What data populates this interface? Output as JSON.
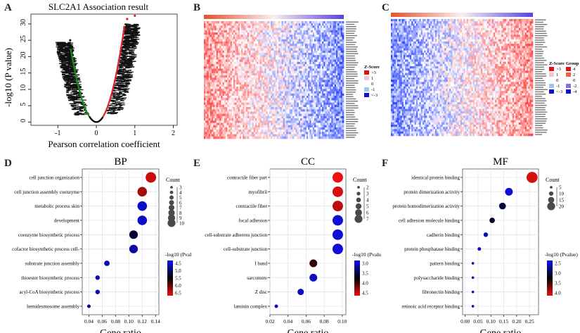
{
  "panel_letters": {
    "a": "A",
    "b": "B",
    "c": "C",
    "d": "D",
    "e": "E",
    "f": "F"
  },
  "chart_data": [
    {
      "id": "A",
      "type": "scatter",
      "title": "SLC2A1 Association result",
      "xlabel": "Pearson correlation coefficient",
      "ylabel": "-log10 (P value)",
      "xlim": [
        -1.7,
        2.1
      ],
      "ylim": [
        -1,
        33
      ],
      "xticks": [
        -1,
        0,
        1,
        2
      ],
      "yticks": [
        0,
        5,
        10,
        15,
        20,
        25,
        30
      ],
      "description": "Volcano-like plot; negatively correlated genes highlighted green (r down to about -0.7, -log10P up to ~25), positively correlated genes highlighted red (r up to ~1.0, -log10P up to ~33), others black",
      "colors": {
        "negative": "#1a8a1a",
        "positive": "#e0202a",
        "other": "#000000"
      }
    },
    {
      "id": "B",
      "type": "heatmap",
      "description": "Heatmap of top positively correlated genes; red (high) on left to blue (low) on right",
      "legend": {
        "title": "Z-Score",
        "labels": [
          ">3",
          "1",
          "0",
          "-1",
          "<-3"
        ],
        "colors": [
          "#e01010",
          "#f4c6cf",
          "#ffffff",
          "#9fc7ea",
          "#1010d0"
        ]
      },
      "group_bar": {
        "from": "#e8502c",
        "to": "#5a40e0"
      }
    },
    {
      "id": "C",
      "type": "heatmap",
      "description": "Heatmap of top negatively correlated genes; blue (low) on left to red (high) on right",
      "legend": {
        "title": "Z-Score",
        "labels": [
          ">3",
          "1",
          "0",
          "-1",
          "<-3"
        ],
        "colors": [
          "#e01010",
          "#f4c6cf",
          "#ffffff",
          "#9fc7ea",
          "#1010d0"
        ]
      },
      "group_legend": {
        "title": "Group",
        "labels": [
          "4",
          "2",
          "0",
          "-2",
          "-4"
        ],
        "colors": [
          "#e01010",
          "#f06040",
          "#ffffff",
          "#8c6ee0",
          "#1010d0"
        ]
      },
      "group_bar": {
        "from": "#e8502c",
        "to": "#5a40e0"
      }
    },
    {
      "id": "D",
      "type": "scatter",
      "title": "BP",
      "xlabel": "Gene ratio",
      "xlim": [
        0.03,
        0.145
      ],
      "xticks": [
        "0.04",
        "0.06",
        "0.08",
        "0.10",
        "0.12",
        "0.14"
      ],
      "xtick_values": [
        0.04,
        0.06,
        0.08,
        0.1,
        0.12,
        0.14
      ],
      "categories": [
        "cell junction organization",
        "cell junction assembly coenzyme",
        "metabolic process skin",
        "development",
        "coenzyme biosynthetic process",
        "cofactor biosynthetic process cell-",
        "substrate junction assembly",
        "thioester biosynthetic process",
        "acyl-CoA biosynthetic process",
        "hemidesmosome assembly"
      ],
      "x": [
        0.133,
        0.12,
        0.12,
        0.12,
        0.107,
        0.107,
        0.067,
        0.053,
        0.053,
        0.04
      ],
      "count": [
        10,
        9,
        9,
        9,
        8,
        8,
        5,
        4,
        4,
        3
      ],
      "neglog10p": [
        6.5,
        6.3,
        4.5,
        4.5,
        5.3,
        4.7,
        4.6,
        4.6,
        4.6,
        4.9
      ],
      "size_legend": {
        "title": "Count",
        "values": [
          3,
          4,
          5,
          6,
          7,
          8,
          9,
          10
        ]
      },
      "color_legend": {
        "title": "-log10 (Pvalue)",
        "ticks": [
          "4.5",
          "5.0",
          "5.5",
          "6.0",
          "6.5"
        ],
        "min": 4.3,
        "max": 6.7
      }
    },
    {
      "id": "E",
      "type": "scatter",
      "title": "CC",
      "xlabel": "Gene ratio",
      "xlim": [
        0.02,
        0.104
      ],
      "xticks": [
        "0.02",
        "0.04",
        "0.06",
        "0.08",
        "0.10"
      ],
      "xtick_values": [
        0.02,
        0.04,
        0.06,
        0.08,
        0.1
      ],
      "categories": [
        "contractile fiber part",
        "myofibril",
        "contractile fiber",
        "focal adhesion",
        "cell-substrate adherens junction",
        "cell-substrate junction",
        "I band",
        "sarcomere",
        "Z disc",
        "laminin complex"
      ],
      "x": [
        0.095,
        0.095,
        0.095,
        0.095,
        0.095,
        0.095,
        0.068,
        0.068,
        0.054,
        0.027
      ],
      "count": [
        7,
        7,
        7,
        7,
        7,
        7,
        5,
        5,
        4,
        2
      ],
      "neglog10p": [
        4.9,
        4.8,
        4.7,
        3.1,
        3.1,
        3.1,
        4.1,
        3.2,
        3.2,
        3.2
      ],
      "size_legend": {
        "title": "Count",
        "values": [
          2,
          3,
          4,
          5,
          6,
          7
        ]
      },
      "color_legend": {
        "title": "-log10 (Pvalue)",
        "ticks": [
          "3.0",
          "3.5",
          "4.0",
          "4.5"
        ],
        "min": 3.0,
        "max": 4.9
      }
    },
    {
      "id": "F",
      "type": "scatter",
      "title": "MF",
      "xlabel": "Gene ratio",
      "xlim": [
        -0.01,
        0.285
      ],
      "xticks": [
        "0.00",
        "0.05",
        "0.10",
        "0.15",
        "0.20",
        "0.25"
      ],
      "xtick_values": [
        0,
        0.05,
        0.1,
        0.15,
        0.2,
        0.25
      ],
      "categories": [
        "identical protein binding",
        "protein dimerization activity",
        "protein homodimerization activity",
        "cell adhesion molecule binding",
        "cadherin binding",
        "protein phosphatase binding",
        "pattern binding",
        "polysaccharide binding",
        "fibronectin binding",
        "retinoic acid receptor binding"
      ],
      "x": [
        0.26,
        0.17,
        0.145,
        0.105,
        0.08,
        0.055,
        0.03,
        0.03,
        0.03,
        0.03
      ],
      "count": [
        21,
        14,
        12,
        9,
        7,
        5,
        3,
        3,
        3,
        3
      ],
      "neglog10p": [
        4.1,
        2.5,
        3.1,
        3.2,
        2.7,
        2.6,
        2.5,
        2.6,
        2.6,
        2.6
      ],
      "size_legend": {
        "title": "Count",
        "values": [
          5,
          10,
          15,
          20
        ]
      },
      "color_legend": {
        "title": "-log10 (Pvalue)",
        "ticks": [
          "2.5",
          "3.0",
          "3.5",
          "4.0"
        ],
        "min": 2.4,
        "max": 4.2
      }
    }
  ]
}
